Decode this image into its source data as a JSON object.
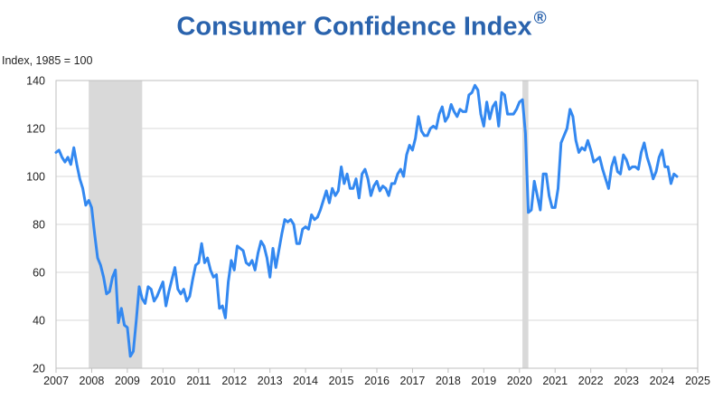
{
  "title": "Consumer Confidence Index",
  "title_mark": "®",
  "ylabel": "Index, 1985 = 100",
  "colors": {
    "line": "#3388f0",
    "recession": "#d9d9d9",
    "grid": "#d9d9d9",
    "title": "#2a63ad"
  },
  "chart_data": {
    "type": "line",
    "title": "Consumer Confidence Index®",
    "ylabel": "Index, 1985 = 100",
    "xlabel": "",
    "xlim": [
      "2007-01",
      "2025-01"
    ],
    "ylim": [
      20,
      140
    ],
    "yticks": [
      20,
      40,
      60,
      80,
      100,
      120,
      140
    ],
    "xticks": [
      "2007",
      "2008",
      "2009",
      "2010",
      "2011",
      "2012",
      "2013",
      "2014",
      "2015",
      "2016",
      "2017",
      "2018",
      "2019",
      "2020",
      "2021",
      "2022",
      "2023",
      "2024",
      "2025"
    ],
    "grid": true,
    "recessions": [
      {
        "start": "2007-12",
        "end": "2009-06"
      },
      {
        "start": "2020-02",
        "end": "2020-04"
      }
    ],
    "series": [
      {
        "points": [
          [
            "2007-01",
            110
          ],
          [
            "2007-02",
            111
          ],
          [
            "2007-03",
            108
          ],
          [
            "2007-04",
            106
          ],
          [
            "2007-05",
            108
          ],
          [
            "2007-06",
            105
          ],
          [
            "2007-07",
            112
          ],
          [
            "2007-08",
            105
          ],
          [
            "2007-09",
            99
          ],
          [
            "2007-10",
            95
          ],
          [
            "2007-11",
            88
          ],
          [
            "2007-12",
            90
          ],
          [
            "2008-01",
            87
          ],
          [
            "2008-02",
            76
          ],
          [
            "2008-03",
            66
          ],
          [
            "2008-04",
            63
          ],
          [
            "2008-05",
            58
          ],
          [
            "2008-06",
            51
          ],
          [
            "2008-07",
            52
          ],
          [
            "2008-08",
            58
          ],
          [
            "2008-09",
            61
          ],
          [
            "2008-10",
            39
          ],
          [
            "2008-11",
            45
          ],
          [
            "2008-12",
            38
          ],
          [
            "2009-01",
            37
          ],
          [
            "2009-02",
            25
          ],
          [
            "2009-03",
            27
          ],
          [
            "2009-04",
            40
          ],
          [
            "2009-05",
            54
          ],
          [
            "2009-06",
            49
          ],
          [
            "2009-07",
            47
          ],
          [
            "2009-08",
            54
          ],
          [
            "2009-09",
            53
          ],
          [
            "2009-10",
            48
          ],
          [
            "2009-11",
            50
          ],
          [
            "2009-12",
            53
          ],
          [
            "2010-01",
            56
          ],
          [
            "2010-02",
            46
          ],
          [
            "2010-03",
            52
          ],
          [
            "2010-04",
            57
          ],
          [
            "2010-05",
            62
          ],
          [
            "2010-06",
            53
          ],
          [
            "2010-07",
            51
          ],
          [
            "2010-08",
            53
          ],
          [
            "2010-09",
            48
          ],
          [
            "2010-10",
            50
          ],
          [
            "2010-11",
            57
          ],
          [
            "2010-12",
            63
          ],
          [
            "2011-01",
            64
          ],
          [
            "2011-02",
            72
          ],
          [
            "2011-03",
            64
          ],
          [
            "2011-04",
            66
          ],
          [
            "2011-05",
            61
          ],
          [
            "2011-06",
            58
          ],
          [
            "2011-07",
            59
          ],
          [
            "2011-08",
            45
          ],
          [
            "2011-09",
            46
          ],
          [
            "2011-10",
            41
          ],
          [
            "2011-11",
            56
          ],
          [
            "2011-12",
            65
          ],
          [
            "2012-01",
            61
          ],
          [
            "2012-02",
            71
          ],
          [
            "2012-03",
            70
          ],
          [
            "2012-04",
            69
          ],
          [
            "2012-05",
            64
          ],
          [
            "2012-06",
            63
          ],
          [
            "2012-07",
            65
          ],
          [
            "2012-08",
            61
          ],
          [
            "2012-09",
            68
          ],
          [
            "2012-10",
            73
          ],
          [
            "2012-11",
            71
          ],
          [
            "2012-12",
            66
          ],
          [
            "2013-01",
            58
          ],
          [
            "2013-02",
            70
          ],
          [
            "2013-03",
            62
          ],
          [
            "2013-04",
            69
          ],
          [
            "2013-05",
            76
          ],
          [
            "2013-06",
            82
          ],
          [
            "2013-07",
            81
          ],
          [
            "2013-08",
            82
          ],
          [
            "2013-09",
            80
          ],
          [
            "2013-10",
            72
          ],
          [
            "2013-11",
            72
          ],
          [
            "2013-12",
            78
          ],
          [
            "2014-01",
            79
          ],
          [
            "2014-02",
            78
          ],
          [
            "2014-03",
            84
          ],
          [
            "2014-04",
            82
          ],
          [
            "2014-05",
            83
          ],
          [
            "2014-06",
            86
          ],
          [
            "2014-07",
            90
          ],
          [
            "2014-08",
            94
          ],
          [
            "2014-09",
            89
          ],
          [
            "2014-10",
            95
          ],
          [
            "2014-11",
            92
          ],
          [
            "2014-12",
            94
          ],
          [
            "2015-01",
            104
          ],
          [
            "2015-02",
            97
          ],
          [
            "2015-03",
            101
          ],
          [
            "2015-04",
            95
          ],
          [
            "2015-05",
            95
          ],
          [
            "2015-06",
            99
          ],
          [
            "2015-07",
            91
          ],
          [
            "2015-08",
            101
          ],
          [
            "2015-09",
            103
          ],
          [
            "2015-10",
            99
          ],
          [
            "2015-11",
            92
          ],
          [
            "2015-12",
            96
          ],
          [
            "2016-01",
            98
          ],
          [
            "2016-02",
            94
          ],
          [
            "2016-03",
            96
          ],
          [
            "2016-04",
            95
          ],
          [
            "2016-05",
            92
          ],
          [
            "2016-06",
            97
          ],
          [
            "2016-07",
            97
          ],
          [
            "2016-08",
            101
          ],
          [
            "2016-09",
            103
          ],
          [
            "2016-10",
            100
          ],
          [
            "2016-11",
            109
          ],
          [
            "2016-12",
            113
          ],
          [
            "2017-01",
            111
          ],
          [
            "2017-02",
            116
          ],
          [
            "2017-03",
            125
          ],
          [
            "2017-04",
            119
          ],
          [
            "2017-05",
            117
          ],
          [
            "2017-06",
            117
          ],
          [
            "2017-07",
            120
          ],
          [
            "2017-08",
            121
          ],
          [
            "2017-09",
            120
          ],
          [
            "2017-10",
            126
          ],
          [
            "2017-11",
            129
          ],
          [
            "2017-12",
            123
          ],
          [
            "2018-01",
            125
          ],
          [
            "2018-02",
            130
          ],
          [
            "2018-03",
            127
          ],
          [
            "2018-04",
            125
          ],
          [
            "2018-05",
            128
          ],
          [
            "2018-06",
            127
          ],
          [
            "2018-07",
            127
          ],
          [
            "2018-08",
            134
          ],
          [
            "2018-09",
            135
          ],
          [
            "2018-10",
            138
          ],
          [
            "2018-11",
            136
          ],
          [
            "2018-12",
            126
          ],
          [
            "2019-01",
            121
          ],
          [
            "2019-02",
            131
          ],
          [
            "2019-03",
            124
          ],
          [
            "2019-04",
            129
          ],
          [
            "2019-05",
            131
          ],
          [
            "2019-06",
            121
          ],
          [
            "2019-07",
            135
          ],
          [
            "2019-08",
            134
          ],
          [
            "2019-09",
            126
          ],
          [
            "2019-10",
            126
          ],
          [
            "2019-11",
            126
          ],
          [
            "2019-12",
            128
          ],
          [
            "2020-01",
            131
          ],
          [
            "2020-02",
            132
          ],
          [
            "2020-03",
            118
          ],
          [
            "2020-04",
            85
          ],
          [
            "2020-05",
            86
          ],
          [
            "2020-06",
            98
          ],
          [
            "2020-07",
            92
          ],
          [
            "2020-08",
            86
          ],
          [
            "2020-09",
            101
          ],
          [
            "2020-10",
            101
          ],
          [
            "2020-11",
            92
          ],
          [
            "2020-12",
            87
          ],
          [
            "2021-01",
            87
          ],
          [
            "2021-02",
            95
          ],
          [
            "2021-03",
            114
          ],
          [
            "2021-04",
            117
          ],
          [
            "2021-05",
            120
          ],
          [
            "2021-06",
            128
          ],
          [
            "2021-07",
            125
          ],
          [
            "2021-08",
            115
          ],
          [
            "2021-09",
            110
          ],
          [
            "2021-10",
            112
          ],
          [
            "2021-11",
            111
          ],
          [
            "2021-12",
            115
          ],
          [
            "2022-01",
            111
          ],
          [
            "2022-02",
            106
          ],
          [
            "2022-03",
            107
          ],
          [
            "2022-04",
            108
          ],
          [
            "2022-05",
            103
          ],
          [
            "2022-06",
            99
          ],
          [
            "2022-07",
            95
          ],
          [
            "2022-08",
            104
          ],
          [
            "2022-09",
            108
          ],
          [
            "2022-10",
            102
          ],
          [
            "2022-11",
            101
          ],
          [
            "2022-12",
            109
          ],
          [
            "2023-01",
            107
          ],
          [
            "2023-02",
            103
          ],
          [
            "2023-03",
            104
          ],
          [
            "2023-04",
            104
          ],
          [
            "2023-05",
            103
          ],
          [
            "2023-06",
            110
          ],
          [
            "2023-07",
            114
          ],
          [
            "2023-08",
            108
          ],
          [
            "2023-09",
            104
          ],
          [
            "2023-10",
            99
          ],
          [
            "2023-11",
            102
          ],
          [
            "2023-12",
            108
          ],
          [
            "2024-01",
            111
          ],
          [
            "2024-02",
            104
          ],
          [
            "2024-03",
            104
          ],
          [
            "2024-04",
            97
          ],
          [
            "2024-05",
            101
          ],
          [
            "2024-06",
            100
          ]
        ]
      }
    ]
  }
}
